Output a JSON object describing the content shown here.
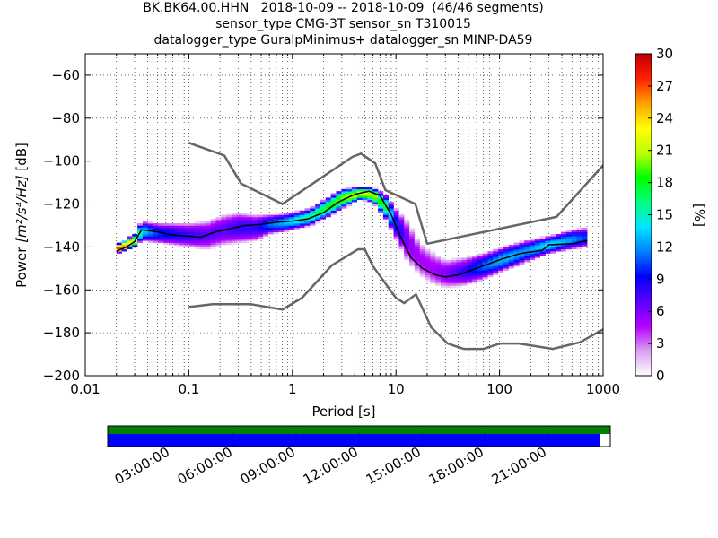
{
  "title": {
    "line1": "BK.BK64.00.HHN   2018-10-09 -- 2018-10-09  (46/46 segments)",
    "line2": "sensor_type CMG-3T sensor_sn T310015",
    "line3": "datalogger_type GuralpMinimus+ datalogger_sn MINP-DA59"
  },
  "chart_data": [
    {
      "type": "heatmap",
      "xlabel": "Period [s]",
      "ylabel_prefix": "Power ",
      "ylabel_units": "[m²/s⁴/Hz]",
      "ylabel_suffix": " [dB]",
      "xscale": "log",
      "xlim": [
        0.01,
        1000
      ],
      "ylim": [
        -200,
        -50
      ],
      "xtick_labels": [
        "0.01",
        "0.1",
        "1",
        "10",
        "100",
        "1000"
      ],
      "xtick_values": [
        0.01,
        0.1,
        1,
        10,
        100,
        1000
      ],
      "ytick_values": [
        -200,
        -180,
        -160,
        -140,
        -120,
        -100,
        -80,
        -60
      ],
      "ytick_labels": [
        "−200",
        "−180",
        "−160",
        "−140",
        "−120",
        "−100",
        "−80",
        "−60"
      ],
      "grid": true,
      "colorbar": {
        "label": "[%]",
        "range": [
          0,
          30
        ],
        "ticks": [
          "0",
          "3",
          "6",
          "9",
          "12",
          "15",
          "18",
          "21",
          "24",
          "27",
          "30"
        ],
        "colormap_stops": [
          "#ffffff",
          "#d9a0f0",
          "#b400ff",
          "#5a00ff",
          "#0000ff",
          "#0080ff",
          "#00e5ff",
          "#00ff80",
          "#00ff00",
          "#bfff00",
          "#ffff00",
          "#ffa000",
          "#ff2000",
          "#c00000"
        ]
      },
      "noise_models": [
        {
          "name": "NHNM",
          "color": "#666666",
          "points": [
            [
              0.1,
              -91.5
            ],
            [
              0.22,
              -97.4
            ],
            [
              0.32,
              -110.5
            ],
            [
              0.8,
              -120
            ],
            [
              3.8,
              -98
            ],
            [
              4.6,
              -96.5
            ],
            [
              6.3,
              -101
            ],
            [
              7.9,
              -113.5
            ],
            [
              15.4,
              -120
            ],
            [
              20,
              -138.5
            ],
            [
              354.8,
              -126
            ],
            [
              10000,
              -48.5
            ]
          ]
        },
        {
          "name": "NLNM",
          "color": "#666666",
          "points": [
            [
              0.1,
              -168
            ],
            [
              0.17,
              -166.7
            ],
            [
              0.4,
              -166.7
            ],
            [
              0.8,
              -169.2
            ],
            [
              1.24,
              -163.7
            ],
            [
              2.4,
              -148.6
            ],
            [
              4.3,
              -141.1
            ],
            [
              5,
              -141.1
            ],
            [
              6,
              -149
            ],
            [
              10,
              -163.8
            ],
            [
              12,
              -166.2
            ],
            [
              15.6,
              -162.1
            ],
            [
              21.9,
              -177.5
            ],
            [
              31.6,
              -185
            ],
            [
              45,
              -187.5
            ],
            [
              70,
              -187.5
            ],
            [
              101,
              -185
            ],
            [
              154,
              -185
            ],
            [
              328,
              -187.5
            ],
            [
              600,
              -184.4
            ],
            [
              10000,
              -151.5
            ]
          ]
        },
        {
          "name": "Mode",
          "color": "#000000",
          "points": [
            [
              0.02,
              -142
            ],
            [
              0.025,
              -140
            ],
            [
              0.03,
              -137.5
            ],
            [
              0.035,
              -132
            ],
            [
              0.05,
              -133
            ],
            [
              0.07,
              -134.5
            ],
            [
              0.1,
              -135
            ],
            [
              0.13,
              -135.5
            ],
            [
              0.18,
              -133
            ],
            [
              0.25,
              -131.5
            ],
            [
              0.35,
              -130
            ],
            [
              0.5,
              -129.5
            ],
            [
              0.7,
              -128.5
            ],
            [
              1,
              -128
            ],
            [
              1.4,
              -127
            ],
            [
              2,
              -124
            ],
            [
              2.8,
              -119
            ],
            [
              4,
              -115.5
            ],
            [
              5.5,
              -114
            ],
            [
              7,
              -116
            ],
            [
              9,
              -125
            ],
            [
              11,
              -135
            ],
            [
              14,
              -145
            ],
            [
              18,
              -150
            ],
            [
              24,
              -153
            ],
            [
              30,
              -154
            ],
            [
              40,
              -153
            ],
            [
              60,
              -150
            ],
            [
              100,
              -146
            ],
            [
              160,
              -143
            ],
            [
              260,
              -141.5
            ],
            [
              300,
              -139
            ],
            [
              500,
              -138.5
            ],
            [
              700,
              -137
            ]
          ]
        }
      ],
      "density_band": [
        [
          0.02,
          -143,
          -139,
          28
        ],
        [
          0.03,
          -140,
          -134,
          22
        ],
        [
          0.035,
          -137,
          -128,
          14
        ],
        [
          0.05,
          -138,
          -129,
          10
        ],
        [
          0.07,
          -139,
          -129,
          9
        ],
        [
          0.1,
          -140,
          -129,
          8
        ],
        [
          0.15,
          -141,
          -128,
          7
        ],
        [
          0.22,
          -139,
          -125,
          7
        ],
        [
          0.3,
          -138,
          -124,
          8
        ],
        [
          0.45,
          -137,
          -125,
          8
        ],
        [
          0.6,
          -134,
          -125,
          11
        ],
        [
          1,
          -132,
          -124,
          14
        ],
        [
          1.5,
          -130,
          -122,
          16
        ],
        [
          2.2,
          -126,
          -117,
          18
        ],
        [
          3,
          -122,
          -113,
          20
        ],
        [
          4.5,
          -118,
          -112,
          22
        ],
        [
          6,
          -119,
          -112,
          21
        ],
        [
          8,
          -127,
          -116,
          17
        ],
        [
          10,
          -136,
          -122,
          10
        ],
        [
          13,
          -147,
          -128,
          6
        ],
        [
          17,
          -153,
          -138,
          5
        ],
        [
          22,
          -157,
          -142,
          5
        ],
        [
          30,
          -159,
          -146,
          6
        ],
        [
          45,
          -158,
          -145,
          8
        ],
        [
          70,
          -155,
          -143,
          11
        ],
        [
          110,
          -151,
          -140,
          13
        ],
        [
          180,
          -147,
          -137,
          12
        ],
        [
          300,
          -143,
          -135,
          14
        ],
        [
          500,
          -141,
          -132,
          12
        ],
        [
          700,
          -140,
          -131,
          10
        ]
      ]
    },
    {
      "type": "timeline",
      "tick_labels": [
        "03:00:00",
        "06:00:00",
        "09:00:00",
        "12:00:00",
        "15:00:00",
        "18:00:00",
        "21:00:00"
      ],
      "tick_hours": [
        3,
        6,
        9,
        12,
        15,
        18,
        21
      ],
      "range_hours": [
        0,
        24
      ],
      "top_bar": {
        "color": "#008000",
        "start": 0,
        "end": 24
      },
      "bottom_bar": {
        "color": "#0000ff",
        "start": 0,
        "end": 23.5
      }
    }
  ]
}
